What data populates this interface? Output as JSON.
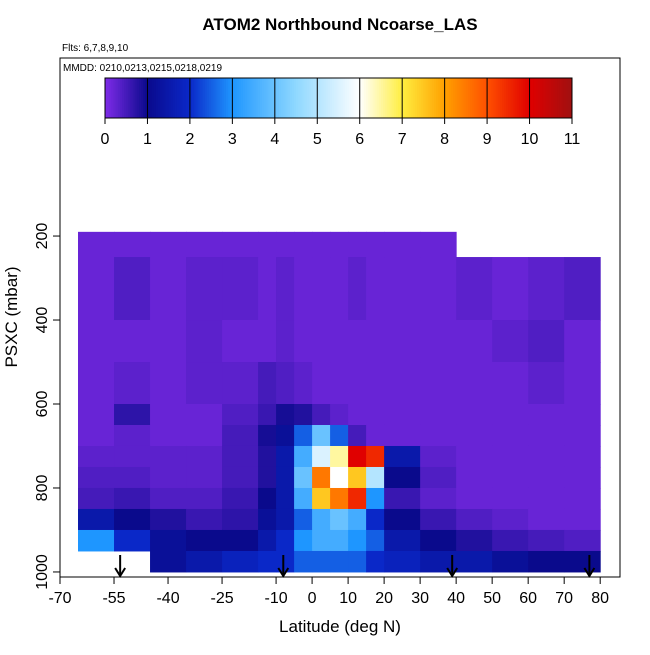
{
  "chart_data": {
    "type": "heatmap",
    "title": "ATOM2 Northbound Ncoarse_LAS",
    "annotations": [
      "Flts: 6,7,8,9,10",
      "MMDD: 0210,0213,0215,0218,0219"
    ],
    "x_label": "Latitude (deg N)",
    "y_label": "PSXC (mbar)",
    "xlim": [
      -70,
      85.5
    ],
    "ylim": [
      1012,
      -224
    ],
    "xticks": [
      -70,
      -55,
      -40,
      -25,
      -10,
      0,
      10,
      20,
      30,
      40,
      50,
      60,
      70,
      80
    ],
    "yticks": [
      200,
      400,
      600,
      800,
      1000
    ],
    "x_edges": [
      -65,
      -55,
      -45,
      -35,
      -25,
      -15,
      -10,
      -5,
      0,
      5,
      10,
      15,
      20,
      30,
      40,
      50,
      60,
      70,
      80
    ],
    "y_edges": [
      190,
      250,
      400,
      500,
      600,
      650,
      700,
      750,
      800,
      850,
      900,
      950,
      1000
    ],
    "values": [
      [
        0.2,
        0.2,
        0.2,
        0.2,
        0.2,
        0.2,
        0.2,
        0.2,
        0.2,
        0.2,
        0.2,
        0.2,
        0.2,
        0.2,
        null,
        null,
        null,
        null
      ],
      [
        0.2,
        0.4,
        0.2,
        0.3,
        0.3,
        0.2,
        0.3,
        0.2,
        0.2,
        0.2,
        0.3,
        0.2,
        0.2,
        0.2,
        0.3,
        0.2,
        0.3,
        0.4
      ],
      [
        0.2,
        0.2,
        0.2,
        0.3,
        0.2,
        0.2,
        0.3,
        0.2,
        0.2,
        0.2,
        0.2,
        0.2,
        0.2,
        0.2,
        0.2,
        0.3,
        0.4,
        0.2
      ],
      [
        0.2,
        0.3,
        0.2,
        0.3,
        0.3,
        0.5,
        0.4,
        0.3,
        0.2,
        0.2,
        0.2,
        0.2,
        0.2,
        0.2,
        0.2,
        0.2,
        0.3,
        0.2
      ],
      [
        0.2,
        0.7,
        0.2,
        0.2,
        0.4,
        0.6,
        0.9,
        0.8,
        0.5,
        0.3,
        0.2,
        0.2,
        0.2,
        0.2,
        0.2,
        0.2,
        0.2,
        0.2
      ],
      [
        0.2,
        0.3,
        0.2,
        0.2,
        0.5,
        0.9,
        1.2,
        2.5,
        4,
        2.5,
        0.5,
        0.2,
        0.2,
        0.2,
        0.2,
        0.2,
        0.2,
        0.2
      ],
      [
        0.3,
        0.3,
        0.3,
        0.3,
        0.5,
        0.8,
        1.5,
        3.5,
        5.5,
        6.5,
        10,
        9.5,
        1.5,
        0.3,
        0.2,
        0.2,
        0.2,
        0.2
      ],
      [
        0.4,
        0.4,
        0.3,
        0.3,
        0.5,
        0.8,
        1.5,
        4,
        8.5,
        6,
        7.5,
        5,
        1,
        0.4,
        0.2,
        0.2,
        0.2,
        0.2
      ],
      [
        0.5,
        0.6,
        0.4,
        0.4,
        0.6,
        1,
        1.5,
        3.5,
        7.5,
        8.5,
        9.5,
        3,
        0.6,
        0.3,
        0.2,
        0.2,
        0.2,
        0.2
      ],
      [
        1.5,
        1,
        0.8,
        0.6,
        0.7,
        1.2,
        1.5,
        2.5,
        3.5,
        4,
        3.5,
        2,
        1,
        0.6,
        0.4,
        0.3,
        0.2,
        0.2
      ],
      [
        3,
        2,
        1.2,
        1,
        1,
        1.5,
        2,
        3,
        3.5,
        3.5,
        3,
        2.5,
        1.5,
        1,
        0.8,
        0.6,
        0.5,
        0.4
      ],
      [
        null,
        null,
        1.2,
        1.5,
        1.8,
        2,
        2,
        2.5,
        2.5,
        2.5,
        2.5,
        2,
        1.8,
        1.5,
        1.5,
        1.2,
        1,
        1
      ]
    ],
    "colorbar_ticks": [
      0,
      1,
      2,
      3,
      4,
      5,
      6,
      7,
      8,
      9,
      10,
      11
    ],
    "colorscale": [
      [
        0,
        "#7f2be8"
      ],
      [
        1,
        "#0a0a8c"
      ],
      [
        2,
        "#0a28c8"
      ],
      [
        3,
        "#1e96ff"
      ],
      [
        4.5,
        "#8fd8ff"
      ],
      [
        6,
        "#ffffff"
      ],
      [
        7,
        "#ffee40"
      ],
      [
        8,
        "#ffa000"
      ],
      [
        9,
        "#ff5000"
      ],
      [
        10,
        "#e00000"
      ],
      [
        11,
        "#a01010"
      ]
    ],
    "flight_markers_x": [
      -53.3,
      -8,
      38.9,
      77
    ]
  }
}
